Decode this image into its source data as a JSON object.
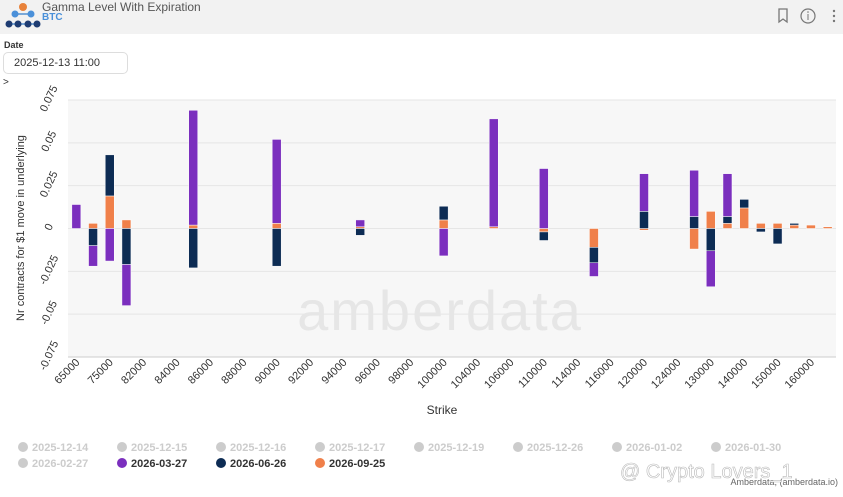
{
  "header": {
    "title": "Gamma Level With Expiration",
    "subtitle": "BTC"
  },
  "filter": {
    "label": "Date",
    "value": "2025-12-13 11:00",
    "toggle": ">"
  },
  "credits": "Amberdata, (amberdata.io)",
  "watermark": "amberdata",
  "overlay": "@ Crypto Lovers_1",
  "chart_data": {
    "type": "bar",
    "stacked": true,
    "x_label": "Strike",
    "y_label": "Nr contracts for $1 move in underlying",
    "categories": [
      "65000",
      null,
      "75000",
      null,
      "82000",
      null,
      "84000",
      null,
      "86000",
      null,
      "88000",
      null,
      "90000",
      null,
      "92000",
      null,
      "94000",
      null,
      "96000",
      null,
      "98000",
      null,
      "100000",
      null,
      "104000",
      null,
      "106000",
      null,
      "110000",
      null,
      "114000",
      null,
      "116000",
      null,
      "120000",
      null,
      "124000",
      null,
      "130000",
      null,
      "140000",
      null,
      "150000",
      null,
      "160000",
      null
    ],
    "ylim": [
      -0.075,
      0.075
    ],
    "yticks": [
      -0.075,
      -0.05,
      -0.025,
      0,
      0.025,
      0.05,
      0.075
    ],
    "grid": true,
    "hidden_color": "#cccccc",
    "hidden_series": [
      "2025-12-14",
      "2025-12-15",
      "2025-12-16",
      "2025-12-17",
      "2025-12-19",
      "2025-12-26",
      "2026-01-02",
      "2026-01-30",
      "2026-02-27"
    ],
    "series": [
      {
        "name": "2026-03-27",
        "color": "#7b2fbe",
        "values": [
          0.014,
          -0.012,
          -0.019,
          -0.024,
          null,
          null,
          null,
          0.067,
          null,
          null,
          null,
          null,
          0.049,
          null,
          null,
          null,
          null,
          0.004,
          null,
          null,
          null,
          null,
          -0.016,
          null,
          null,
          0.063,
          null,
          null,
          0.035,
          null,
          null,
          -0.008,
          null,
          null,
          0.022,
          null,
          null,
          0.027,
          -0.021,
          0.025,
          null,
          null,
          null,
          null,
          null,
          null
        ]
      },
      {
        "name": "2026-06-26",
        "color": "#0d2c54",
        "values": [
          null,
          -0.01,
          0.024,
          -0.021,
          null,
          null,
          null,
          -0.023,
          null,
          null,
          null,
          null,
          -0.022,
          null,
          null,
          null,
          null,
          -0.004,
          null,
          null,
          null,
          null,
          0.008,
          null,
          null,
          null,
          null,
          null,
          -0.005,
          null,
          null,
          -0.009,
          null,
          null,
          0.01,
          null,
          null,
          0.007,
          -0.013,
          0.004,
          0.005,
          -0.002,
          -0.009,
          0.001,
          null,
          null
        ]
      },
      {
        "name": "2026-09-25",
        "color": "#f0804a",
        "values": [
          null,
          0.003,
          0.019,
          0.005,
          null,
          null,
          null,
          0.002,
          null,
          null,
          null,
          null,
          0.003,
          null,
          null,
          null,
          null,
          0.001,
          null,
          null,
          null,
          null,
          0.005,
          null,
          null,
          0.001,
          null,
          null,
          -0.002,
          null,
          null,
          -0.011,
          null,
          null,
          -0.001,
          null,
          null,
          -0.012,
          0.01,
          0.003,
          0.012,
          0.003,
          0.003,
          0.002,
          0.002,
          0.001
        ]
      }
    ]
  }
}
